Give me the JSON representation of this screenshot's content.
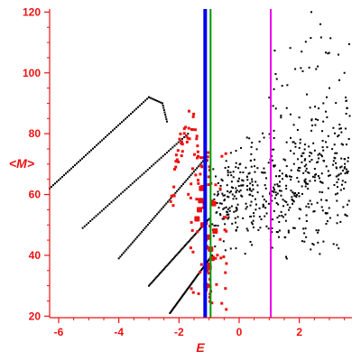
{
  "chart_data": {
    "type": "scatter",
    "title": "",
    "xlabel": "E",
    "ylabel": "<M>",
    "xlim": [
      -6.3,
      3.75
    ],
    "ylim": [
      19.5,
      121
    ],
    "x_ticks": [
      -6,
      -4,
      -2,
      0,
      2
    ],
    "y_ticks": [
      20,
      40,
      60,
      80,
      100,
      120
    ],
    "grid": false,
    "legend": "none",
    "colors": {
      "axis": "#ee1111",
      "black_points": "#000000",
      "red_points": "#ee1111",
      "blue_line": "#0000ee",
      "green_line": "#009900",
      "magenta_line": "#ee00ee"
    },
    "vertical_lines": [
      {
        "x": -1.13,
        "color": "#0000ee",
        "style": "thick"
      },
      {
        "x": -0.95,
        "color": "#009900",
        "style": "medium"
      },
      {
        "x": 1.05,
        "color": "#ee00ee",
        "style": "medium"
      }
    ],
    "black_diagonal_bands": [
      {
        "x": [
          -6.3,
          -3.0
        ],
        "y": [
          62,
          92
        ]
      },
      {
        "x": [
          -5.2,
          -1.7
        ],
        "y": [
          49,
          80
        ]
      },
      {
        "x": [
          -4.0,
          -1.2
        ],
        "y": [
          39,
          71
        ]
      },
      {
        "x": [
          -3.0,
          -1.0
        ],
        "y": [
          30,
          52
        ]
      },
      {
        "x": [
          -2.3,
          -0.9
        ],
        "y": [
          21,
          40
        ]
      }
    ],
    "black_band_tails": [
      {
        "x": [
          -3.0,
          -2.55
        ],
        "y": [
          92,
          90
        ]
      },
      {
        "x": [
          -2.55,
          -2.4
        ],
        "y": [
          90,
          84
        ]
      }
    ],
    "black_cloud": {
      "x_range": [
        -0.9,
        3.7
      ],
      "y_center": 57,
      "y_spread": 14,
      "upper_tail": [
        [
          2.4,
          120
        ],
        [
          2.7,
          116
        ],
        [
          3.3,
          106
        ],
        [
          3.5,
          100
        ],
        [
          3.0,
          95
        ],
        [
          2.8,
          90
        ]
      ]
    },
    "red_arc": {
      "x": [
        -2.3,
        -0.6
      ],
      "y": [
        83,
        20
      ],
      "peak": [
        -1.6,
        83
      ]
    },
    "red_large_points": [
      {
        "x": -1.25,
        "y": 62
      },
      {
        "x": -1.28,
        "y": 58
      },
      {
        "x": -1.32,
        "y": 55
      },
      {
        "x": -1.2,
        "y": 50
      },
      {
        "x": -1.05,
        "y": 46
      },
      {
        "x": -0.95,
        "y": 42
      },
      {
        "x": -0.9,
        "y": 39
      },
      {
        "x": -1.0,
        "y": 36
      },
      {
        "x": -1.1,
        "y": 30
      },
      {
        "x": -0.85,
        "y": 57
      },
      {
        "x": -1.4,
        "y": 52
      },
      {
        "x": -0.8,
        "y": 48
      }
    ]
  }
}
